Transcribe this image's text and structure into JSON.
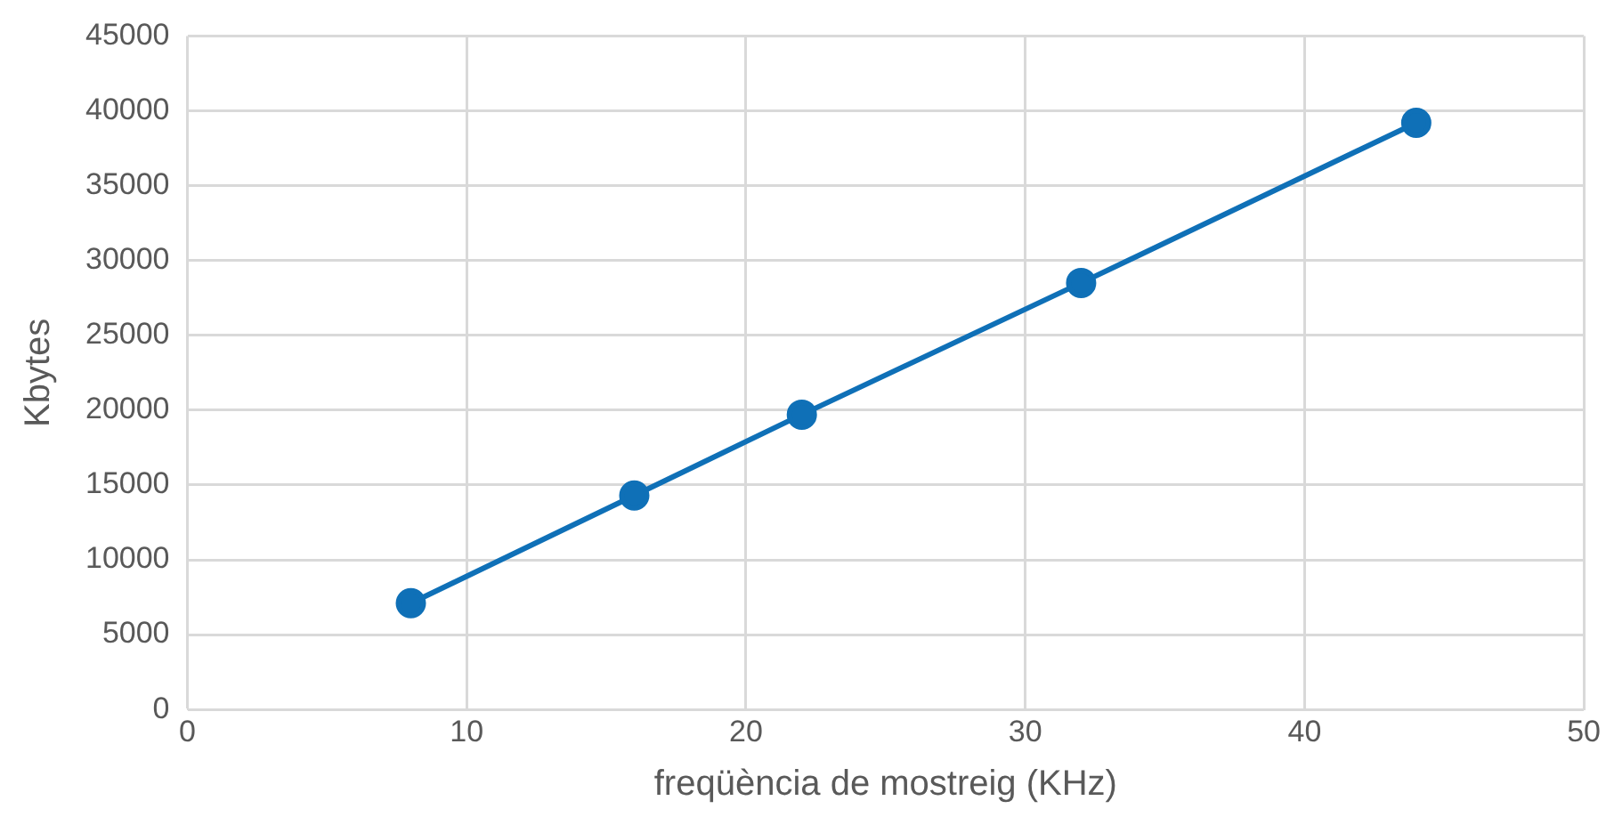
{
  "chart_data": {
    "type": "line",
    "xlabel": "freqüència de mostreig (KHz)",
    "ylabel": "Kbytes",
    "x": [
      8,
      16,
      22,
      32,
      44
    ],
    "series": [
      {
        "color": "#0f70b7",
        "values": [
          7100,
          14300,
          19700,
          28500,
          39200
        ]
      }
    ],
    "xlim": [
      0,
      50
    ],
    "xticks": [
      0,
      10,
      20,
      30,
      40,
      50
    ],
    "ylim": [
      0,
      45000
    ],
    "yticks": [
      0,
      5000,
      10000,
      15000,
      20000,
      25000,
      30000,
      35000,
      40000,
      45000
    ],
    "grid": true,
    "marker": "circle",
    "line_style": "solid",
    "legend": false
  }
}
